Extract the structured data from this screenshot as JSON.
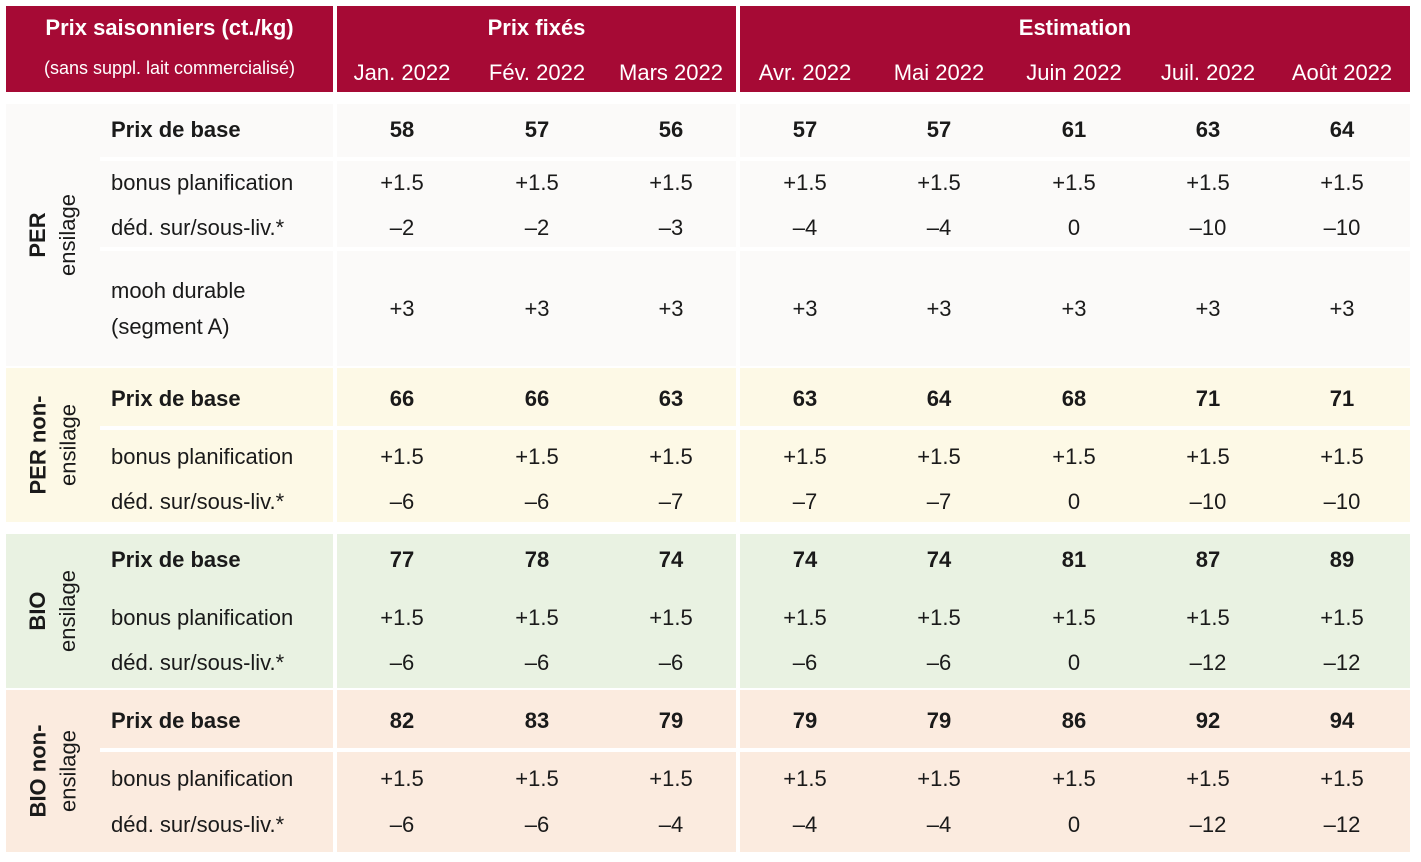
{
  "header": {
    "title": "Prix saisonniers (ct./kg)",
    "subtitle": "(sans suppl. lait commercialisé)",
    "group_fixed": "Prix fixés",
    "group_estimate": "Estimation",
    "months": [
      "Jan. 2022",
      "Fév. 2022",
      "Mars 2022",
      "Avr. 2022",
      "Mai 2022",
      "Juin 2022",
      "Juil. 2022",
      "Août 2022"
    ]
  },
  "colors": {
    "header_bg": "#a60a35",
    "band_per_ensilage": "#fbfaf9",
    "band_per_non_ensilage": "#fdf9e6",
    "band_bio_ensilage": "#e9f2e2",
    "band_bio_non_ensilage": "#fbebdf"
  },
  "sections": [
    {
      "label_line1": "PER",
      "label_line2": "ensilage",
      "rows": [
        {
          "label": "Prix de base",
          "values": [
            "58",
            "57",
            "56",
            "57",
            "57",
            "61",
            "63",
            "64"
          ]
        },
        {
          "label": "bonus planification",
          "values": [
            "+1.5",
            "+1.5",
            "+1.5",
            "+1.5",
            "+1.5",
            "+1.5",
            "+1.5",
            "+1.5"
          ]
        },
        {
          "label": "déd. sur/sous-liv.*",
          "values": [
            "–2",
            "–2",
            "–3",
            "–4",
            "–4",
            "0",
            "–10",
            "–10"
          ]
        },
        {
          "label": "mooh durable",
          "label2": "(segment A)",
          "values": [
            "+3",
            "+3",
            "+3",
            "+3",
            "+3",
            "+3",
            "+3",
            "+3"
          ]
        }
      ]
    },
    {
      "label_line1": "PER non-",
      "label_line2": "ensilage",
      "rows": [
        {
          "label": "Prix de base",
          "values": [
            "66",
            "66",
            "63",
            "63",
            "64",
            "68",
            "71",
            "71"
          ]
        },
        {
          "label": "bonus planification",
          "values": [
            "+1.5",
            "+1.5",
            "+1.5",
            "+1.5",
            "+1.5",
            "+1.5",
            "+1.5",
            "+1.5"
          ]
        },
        {
          "label": "déd. sur/sous-liv.*",
          "values": [
            "–6",
            "–6",
            "–7",
            "–7",
            "–7",
            "0",
            "–10",
            "–10"
          ]
        }
      ]
    },
    {
      "label_line1": "BIO",
      "label_line2": "ensilage",
      "rows": [
        {
          "label": "Prix de base",
          "values": [
            "77",
            "78",
            "74",
            "74",
            "74",
            "81",
            "87",
            "89"
          ]
        },
        {
          "label": "bonus planification",
          "values": [
            "+1.5",
            "+1.5",
            "+1.5",
            "+1.5",
            "+1.5",
            "+1.5",
            "+1.5",
            "+1.5"
          ]
        },
        {
          "label": "déd. sur/sous-liv.*",
          "values": [
            "–6",
            "–6",
            "–6",
            "–6",
            "–6",
            "0",
            "–12",
            "–12"
          ]
        }
      ]
    },
    {
      "label_line1": "BIO non-",
      "label_line2": "ensilage",
      "rows": [
        {
          "label": "Prix de base",
          "values": [
            "82",
            "83",
            "79",
            "79",
            "79",
            "86",
            "92",
            "94"
          ]
        },
        {
          "label": "bonus planification",
          "values": [
            "+1.5",
            "+1.5",
            "+1.5",
            "+1.5",
            "+1.5",
            "+1.5",
            "+1.5",
            "+1.5"
          ]
        },
        {
          "label": "déd. sur/sous-liv.*",
          "values": [
            "–6",
            "–6",
            "–4",
            "–4",
            "–4",
            "0",
            "–12",
            "–12"
          ]
        }
      ]
    }
  ]
}
